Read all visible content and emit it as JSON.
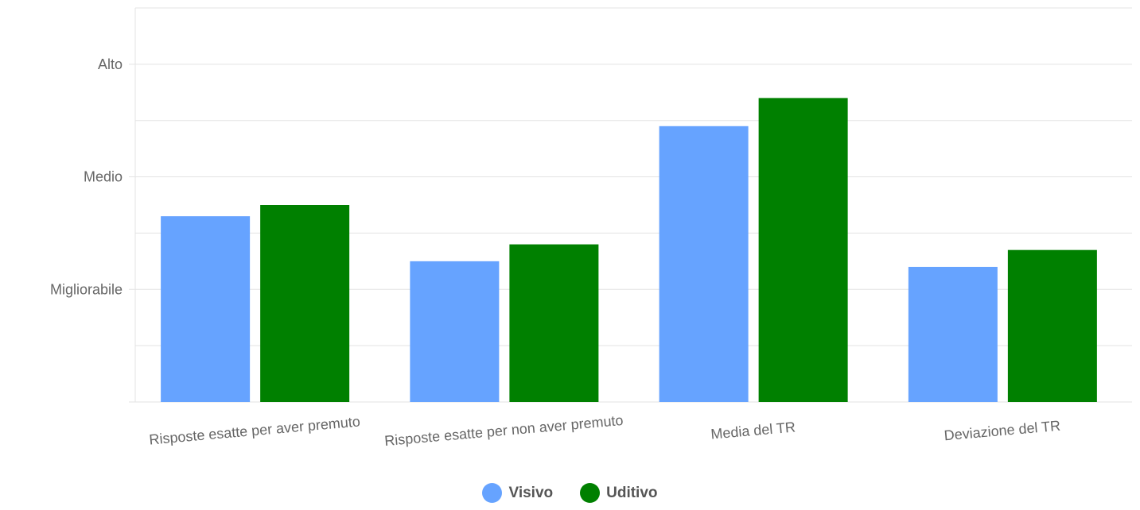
{
  "chart_data": {
    "type": "bar",
    "categories": [
      "Risposte esatte per aver premuto",
      "Risposte esatte per non aver premuto",
      "Media del TR",
      "Deviazione del TR"
    ],
    "series": [
      {
        "name": "Visivo",
        "color": "#66a3ff",
        "values": [
          1.65,
          1.25,
          2.45,
          1.2
        ]
      },
      {
        "name": "Uditivo",
        "color": "#008000",
        "values": [
          1.75,
          1.4,
          2.7,
          1.35
        ]
      }
    ],
    "ylim": [
      0,
      3.5
    ],
    "y_ticks": [
      {
        "value": 1,
        "label": "Migliorabile"
      },
      {
        "value": 2,
        "label": "Medio"
      },
      {
        "value": 3,
        "label": "Alto"
      }
    ],
    "grid": true,
    "legend_position": "bottom"
  }
}
